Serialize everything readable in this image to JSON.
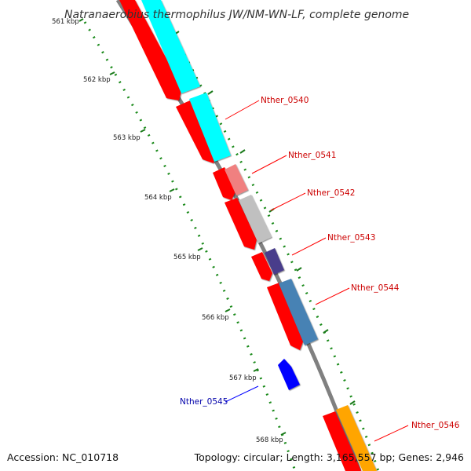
{
  "title": "Natranaerobius thermophilus JW/NM-WN-LF, complete genome",
  "footer": {
    "accession": "Accession: NC_010718",
    "summary": "Topology: circular; Length: 3,165,557 bp; Genes: 2,946"
  },
  "ruler": {
    "ticks": [
      {
        "label": "561 kbp"
      },
      {
        "label": "562 kbp"
      },
      {
        "label": "563 kbp"
      },
      {
        "label": "564 kbp"
      },
      {
        "label": "565 kbp"
      },
      {
        "label": "566 kbp"
      },
      {
        "label": "567 kbp"
      },
      {
        "label": "568 kbp"
      }
    ]
  },
  "genes": [
    {
      "name": "Nther_0540",
      "strand": "plus",
      "color": "#00ffff",
      "label_color": "#cc0000"
    },
    {
      "name": "Nther_0541",
      "strand": "plus",
      "color": "#f08080",
      "label_color": "#cc0000"
    },
    {
      "name": "Nther_0542",
      "strand": "plus",
      "color": "#c0c0c0",
      "label_color": "#cc0000"
    },
    {
      "name": "Nther_0543",
      "strand": "plus",
      "color": "#483d8b",
      "label_color": "#cc0000"
    },
    {
      "name": "Nther_0544",
      "strand": "plus",
      "color": "#4682b4",
      "label_color": "#cc0000"
    },
    {
      "name": "Nther_0545",
      "strand": "minus",
      "color": "#0000ff",
      "label_color": "#0000aa"
    },
    {
      "name": "Nther_0546",
      "strand": "plus",
      "color": "#ffa500",
      "label_color": "#cc0000"
    }
  ],
  "cds_track_color": "#ff0000",
  "backbone_color": "#808080"
}
